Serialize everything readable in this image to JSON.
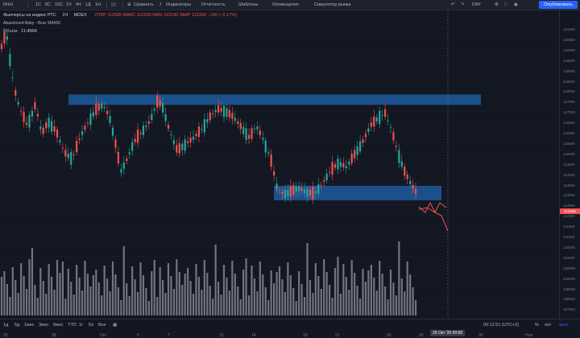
{
  "symbol": "RIH1",
  "toolbar": {
    "intervals": [
      "1С",
      "5С",
      "15С",
      "1Ч",
      "4Ч",
      "1Д",
      "1Н"
    ],
    "compare": "Сравнить",
    "indicators": "Индикаторы",
    "reports": "Отчётность",
    "templates": "Шаблоны",
    "alerts": "Оповещения",
    "replay": "Симулятор рынка",
    "timeframe_right": "DAY",
    "publish": "Опубликовать"
  },
  "legend": {
    "title": "Фьючерсы на индекс РТС",
    "interval": "1Ч",
    "exchange": "MOEX",
    "ohlc": "ОТКР 112500  МАКС 112530  МИН 112190  ЗАКР 112330  −190 (−0.17%)",
    "study": "Abandoned Baby - Bear  SMA50",
    "volume_label": "Объём",
    "volume_value": "11.456K"
  },
  "yaxis": [
    "121000",
    "120500",
    "120000",
    "119500",
    "119000",
    "118500",
    "118000",
    "117500",
    "117000",
    "116500",
    "116000",
    "115500",
    "115000",
    "114500",
    "114000",
    "113500",
    "113000",
    "112500",
    "112000",
    "111500",
    "111000",
    "110500",
    "110000",
    "109500",
    "109000",
    "108500",
    "108000",
    "107500",
    "107000"
  ],
  "price_labels": {
    "last": "112330",
    "last_color": "#ef5350"
  },
  "xaxis": [
    "23",
    "28",
    "Окт",
    "5",
    "7",
    "12",
    "14",
    "19",
    "21",
    "26",
    "28",
    "30",
    "Ноя"
  ],
  "crosshair_date": "29 Окт '20  00:00",
  "bottombar": {
    "ranges": [
      "1д",
      "5д",
      "1мес",
      "3мес",
      "6мес",
      "YTD",
      "1г",
      "5л",
      "Все"
    ],
    "time": "09:12:51 (UTC+3)",
    "scale": [
      "%",
      "лог",
      "авто"
    ]
  },
  "colors": {
    "up": "#26a69a",
    "down": "#ef5350",
    "zone": "#1e5a9c",
    "volume": "#bfc3cc"
  }
}
